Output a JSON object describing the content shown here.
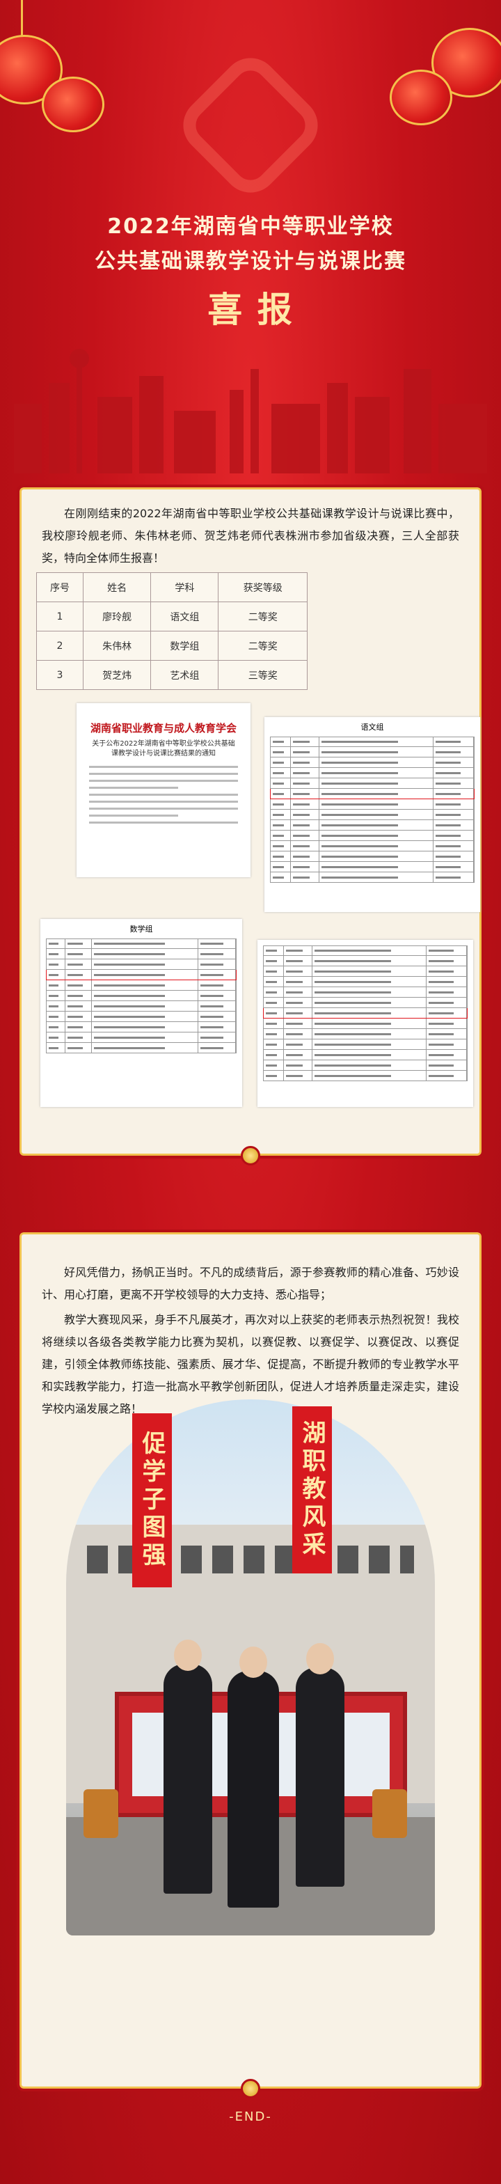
{
  "header": {
    "title_line1": "2022年湖南省中等职业学校",
    "title_line2": "公共基础课教学设计与说课比赛",
    "headline": "喜 报"
  },
  "section1": {
    "paragraph": "在刚刚结束的2022年湖南省中等职业学校公共基础课教学设计与说课比赛中，我校廖玲舰老师、朱伟林老师、贺芝炜老师代表株洲市参加省级决赛，三人全部获奖，特向全体师生报喜！",
    "table": {
      "columns": [
        "序号",
        "姓名",
        "学科",
        "获奖等级"
      ],
      "rows": [
        [
          "1",
          "廖玲舰",
          "语文组",
          "二等奖"
        ],
        [
          "2",
          "朱伟林",
          "数学组",
          "二等奖"
        ],
        [
          "3",
          "贺芝炜",
          "艺术组",
          "三等奖"
        ]
      ]
    },
    "document": {
      "org": "湖南省职业教育与成人教育学会",
      "notice_title": "关于公布2022年湖南省中等职业学校公共基础课教学设计与说课比赛结果的通知",
      "group_chinese": "语文组",
      "group_math": "数学组"
    }
  },
  "section2": {
    "paragraphs": [
      "好风凭借力，扬帆正当时。不凡的成绩背后，源于参赛教师的精心准备、巧妙设计、用心打磨，更离不开学校领导的大力支持、悉心指导；",
      "教学大赛现风采，身手不凡展英才，再次对以上获奖的老师表示热烈祝贺！我校将继续以各级各类教学能力比赛为契机，以赛促教、以赛促学、以赛促改、以赛促建，引领全体教师练技能、强素质、展才华、促提高，不断提升教师的专业教学水平和实践教学能力，打造一批高水平教学创新团队，促进人才培养质量走深走实，建设学校内涵发展之路！"
    ],
    "banner_left": "促学子图强",
    "banner_right": "湖职教风采"
  },
  "footer": "-END-"
}
